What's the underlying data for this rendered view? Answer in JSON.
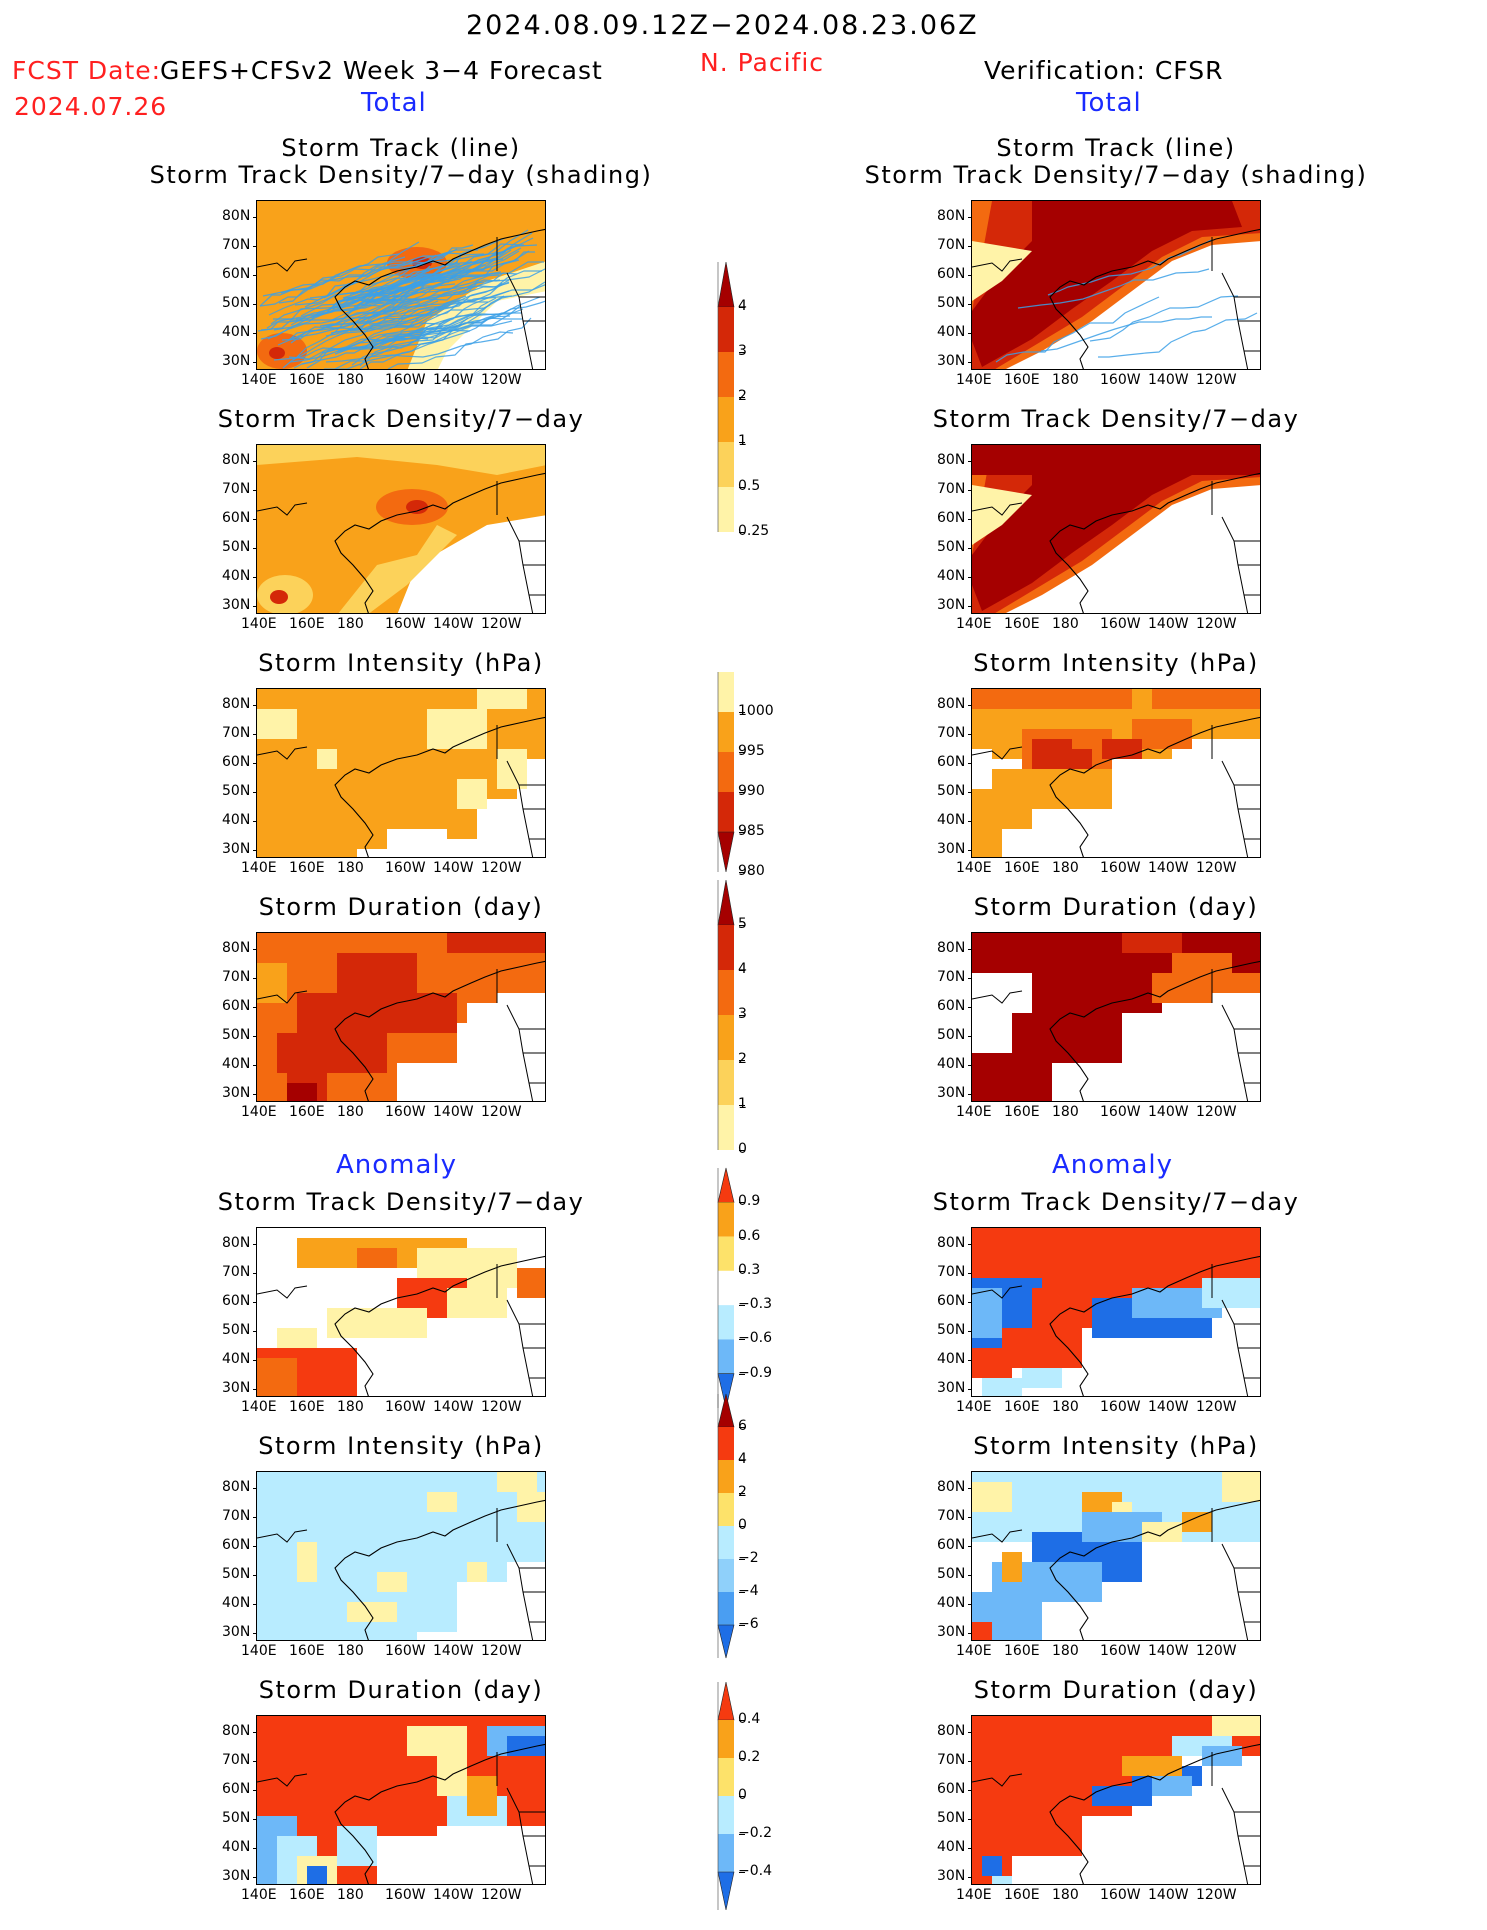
{
  "header": {
    "date_range": "2024.08.09.12Z−2024.08.23.06Z",
    "fcst_prefix": "FCST Date:",
    "fcst_date": "2024.07.26",
    "forecast_system": "GEFS+CFSv2 Week 3−4 Forecast",
    "region": "N. Pacific",
    "verification": "Verification: CFSR"
  },
  "sections": {
    "total": "Total",
    "anomaly": "Anomaly"
  },
  "panel_titles": {
    "track_line": "Storm Track (line)",
    "track_shade": "Storm Track Density/7−day (shading)",
    "density": "Storm Track Density/7−day",
    "intensity": "Storm Intensity (hPa)",
    "duration": "Storm Duration (day)"
  },
  "axes": {
    "lon_ticks": [
      "140E",
      "160E",
      "180",
      "160W",
      "140W",
      "120W"
    ],
    "lat_ticks": [
      "80N",
      "70N",
      "60N",
      "50N",
      "40N",
      "30N"
    ]
  },
  "colorbars": [
    {
      "id": "density_total",
      "labels": [
        "4",
        "3",
        "2",
        "1",
        "0.5",
        "0.25"
      ],
      "colors": [
        "#a50000",
        "#d42808",
        "#f36a10",
        "#f9a21a",
        "#fcd25a",
        "#fff3a8"
      ]
    },
    {
      "id": "intensity_total",
      "labels": [
        "1000",
        "995",
        "990",
        "985",
        "980"
      ],
      "colors": [
        "#fff3a8",
        "#f9a21a",
        "#f36a10",
        "#d42808",
        "#a50000"
      ]
    },
    {
      "id": "duration_total",
      "labels": [
        "5",
        "4",
        "3",
        "2",
        "1",
        "0"
      ],
      "colors": [
        "#a50000",
        "#d42808",
        "#f36a10",
        "#f9a21a",
        "#fcd25a",
        "#fff3a8"
      ]
    },
    {
      "id": "density_anom",
      "labels": [
        "0.9",
        "0.6",
        "0.3",
        "−0.3",
        "−0.6",
        "−0.9"
      ],
      "colors": [
        "#f53a10",
        "#f9a21a",
        "#fde26a",
        "#ffffff",
        "#b8ecff",
        "#6db8f8",
        "#1e6ee6"
      ]
    },
    {
      "id": "intensity_anom",
      "labels": [
        "6",
        "4",
        "2",
        "0",
        "−2",
        "−4",
        "−6"
      ],
      "colors": [
        "#a50000",
        "#f53a10",
        "#f9a21a",
        "#fde26a",
        "#b8ecff",
        "#8fd0fa",
        "#4a9ef2",
        "#1e6ee6"
      ]
    },
    {
      "id": "duration_anom",
      "labels": [
        "0.4",
        "0.2",
        "0",
        "−0.2",
        "−0.4"
      ],
      "colors": [
        "#f53a10",
        "#f9a21a",
        "#fde26a",
        "#b8ecff",
        "#6db8f8",
        "#1e6ee6"
      ]
    }
  ],
  "palette": {
    "pale": "#fff3a8",
    "light": "#fcd25a",
    "orange": "#f9a21a",
    "dkorange": "#f36a10",
    "red": "#d42808",
    "dkred": "#a50000",
    "anom_red": "#f53a10",
    "lblue": "#b8ecff",
    "mblue": "#6db8f8",
    "dblue": "#1e6ee6",
    "track_line": "#3ca0e6"
  }
}
